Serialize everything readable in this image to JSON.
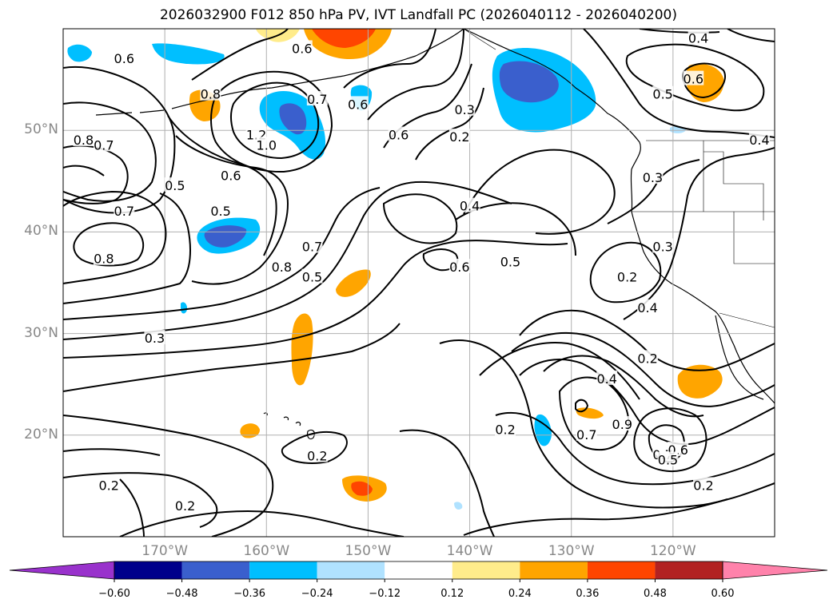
{
  "title": "2026032900 F012 850 hPa PV, IVT Landfall PC (2026040112 - 2026040200)",
  "map": {
    "lon_range": [
      -180,
      -110
    ],
    "lat_range": [
      10,
      60
    ],
    "gridlines": true,
    "lat_ticks": [
      {
        "value": 20,
        "label": "20°N"
      },
      {
        "value": 30,
        "label": "30°N"
      },
      {
        "value": 40,
        "label": "40°N"
      },
      {
        "value": 50,
        "label": "50°N"
      }
    ],
    "lon_ticks": [
      {
        "value": -170,
        "label": "170°W"
      },
      {
        "value": -160,
        "label": "160°W"
      },
      {
        "value": -150,
        "label": "150°W"
      },
      {
        "value": -140,
        "label": "140°W"
      },
      {
        "value": -130,
        "label": "130°W"
      },
      {
        "value": -120,
        "label": "120°W"
      }
    ]
  },
  "colorbar": {
    "labels": [
      "−0.60",
      "−0.48",
      "−0.36",
      "−0.24",
      "−0.12",
      "0.12",
      "0.24",
      "0.36",
      "0.48",
      "0.60"
    ],
    "colors": [
      "#9932cc",
      "#00008b",
      "#3a5fcd",
      "#00bfff",
      "#b0e2ff",
      "#ffffff",
      "#ffec8b",
      "#ffa500",
      "#ff4500",
      "#b22222",
      "#ff82ab"
    ]
  },
  "contour_labels": [
    {
      "text": "0.6",
      "lon": -174,
      "lat": 57
    },
    {
      "text": "0.8",
      "lon": -178,
      "lat": 49
    },
    {
      "text": "0.7",
      "lon": -176,
      "lat": 48.5
    },
    {
      "text": "0.5",
      "lon": -169,
      "lat": 44.5
    },
    {
      "text": "0.6",
      "lon": -163.5,
      "lat": 45.5
    },
    {
      "text": "0.5",
      "lon": -164.5,
      "lat": 42
    },
    {
      "text": "0.7",
      "lon": -174,
      "lat": 42
    },
    {
      "text": "0.8",
      "lon": -176,
      "lat": 37.3
    },
    {
      "text": "1.2",
      "lon": -161,
      "lat": 49.5
    },
    {
      "text": "1.0",
      "lon": -160,
      "lat": 48.5
    },
    {
      "text": "0.7",
      "lon": -155,
      "lat": 53
    },
    {
      "text": "0.6",
      "lon": -156.5,
      "lat": 58
    },
    {
      "text": "0.8",
      "lon": -165.5,
      "lat": 53.5
    },
    {
      "text": "0.6",
      "lon": -151,
      "lat": 52.5
    },
    {
      "text": "0.6",
      "lon": -147,
      "lat": 49.5
    },
    {
      "text": "0.7",
      "lon": -155.5,
      "lat": 38.5
    },
    {
      "text": "0.8",
      "lon": -158.5,
      "lat": 36.5
    },
    {
      "text": "0.5",
      "lon": -155.5,
      "lat": 35.5
    },
    {
      "text": "0.3",
      "lon": -140.5,
      "lat": 52
    },
    {
      "text": "0.2",
      "lon": -141,
      "lat": 49.3
    },
    {
      "text": "0.4",
      "lon": -140,
      "lat": 42.5
    },
    {
      "text": "0.6",
      "lon": -141,
      "lat": 36.5
    },
    {
      "text": "0.5",
      "lon": -136,
      "lat": 37
    },
    {
      "text": "0.4",
      "lon": -117.5,
      "lat": 59
    },
    {
      "text": "0.6",
      "lon": -118,
      "lat": 55
    },
    {
      "text": "0.5",
      "lon": -121,
      "lat": 53.5
    },
    {
      "text": "0.4",
      "lon": -111.5,
      "lat": 49
    },
    {
      "text": "0.3",
      "lon": -122,
      "lat": 45.3
    },
    {
      "text": "0.3",
      "lon": -121,
      "lat": 38.5
    },
    {
      "text": "0.2",
      "lon": -124.5,
      "lat": 35.5
    },
    {
      "text": "0.4",
      "lon": -122.5,
      "lat": 32.5
    },
    {
      "text": "0.2",
      "lon": -122.5,
      "lat": 27.5
    },
    {
      "text": "0.4",
      "lon": -126.5,
      "lat": 25.5
    },
    {
      "text": "0.9",
      "lon": -125,
      "lat": 21
    },
    {
      "text": "0.7",
      "lon": -128.5,
      "lat": 20
    },
    {
      "text": "0.7",
      "lon": -121,
      "lat": 18
    },
    {
      "text": "0.6",
      "lon": -119.5,
      "lat": 18.5
    },
    {
      "text": "0.5",
      "lon": -120.5,
      "lat": 17.5
    },
    {
      "text": "0.2",
      "lon": -117,
      "lat": 15
    },
    {
      "text": "0.2",
      "lon": -136.5,
      "lat": 20.5
    },
    {
      "text": "0.3",
      "lon": -171,
      "lat": 29.5
    },
    {
      "text": "0.2",
      "lon": -175.5,
      "lat": 15
    },
    {
      "text": "0.2",
      "lon": -168,
      "lat": 13
    },
    {
      "text": "0.2",
      "lon": -155,
      "lat": 17.9
    }
  ]
}
